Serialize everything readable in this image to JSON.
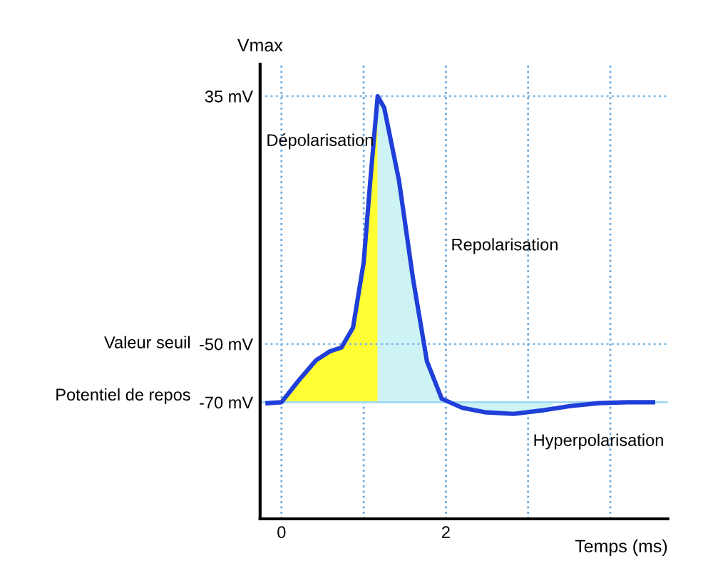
{
  "chart_data": {
    "type": "line",
    "ylabel": "Vmax",
    "xlabel": "Temps (ms)",
    "x": [
      -0.17,
      0,
      0.21,
      0.42,
      0.59,
      0.73,
      0.87,
      1.0,
      1.08,
      1.17,
      1.25,
      1.43,
      1.6,
      1.77,
      1.95,
      2.2,
      2.47,
      2.82,
      3.17,
      3.51,
      3.86,
      4.21,
      4.52
    ],
    "series": [
      {
        "type": "area",
        "color": "#ffff33",
        "x": [
          0,
          0.21,
          0.42,
          0.59,
          0.73,
          0.87,
          1.0,
          1.08,
          1.17,
          1.17
        ],
        "values": [
          -70,
          -62.5,
          -55.6,
          -52.5,
          -51.2,
          -44.4,
          -22,
          5.9,
          35,
          -70
        ]
      },
      {
        "type": "area",
        "color": "#cdf3f5",
        "x": [
          1.17,
          1.17,
          1.25,
          1.43,
          1.6,
          1.77,
          1.95,
          2.2,
          2.47,
          2.82,
          3.17,
          3.3,
          3.3
        ],
        "values": [
          -70,
          35,
          31,
          6,
          -27.6,
          -56,
          -68.8,
          -71.9,
          -73.4,
          -74,
          -72.8,
          -72.2,
          -70
        ]
      },
      {
        "color": "#1f3fd8",
        "values": [
          -70.3,
          -70,
          -62.5,
          -55.6,
          -52.5,
          -51.2,
          -44.4,
          -22,
          5.9,
          35,
          31,
          6,
          -27.6,
          -56,
          -68.8,
          -71.9,
          -73.4,
          -74,
          -72.8,
          -71.3,
          -70.3,
          -70,
          -70
        ]
      }
    ],
    "xlim": [
      -0.26,
      4.7
    ],
    "ylim": [
      -110,
      46
    ],
    "xticks": [
      0,
      {
        "value": 1,
        "label": null
      },
      2,
      {
        "value": 3,
        "label": null
      },
      {
        "value": 4,
        "label": null
      }
    ],
    "yticks": [
      {
        "value": -70,
        "label": "-70 mV"
      },
      {
        "value": -50,
        "label": "-50 mV"
      },
      {
        "value": 35,
        "label": "35 mV"
      }
    ],
    "grid": "x",
    "marker": "none",
    "line_style": "solid",
    "ref_lines": [
      {
        "axis": "y",
        "value": 35,
        "color": "#7ab8e6",
        "line_style": "dotted"
      },
      {
        "axis": "y",
        "value": -50,
        "color": "#7ab8e6",
        "line_style": "dotted"
      },
      {
        "axis": "y",
        "value": -70,
        "color": "#9fd8f0",
        "line_style": "solid"
      }
    ],
    "annotations": [
      "Dépolarisation",
      "Repolarisation",
      "Hyperpolarisation",
      "Valeur seuil",
      "Potentiel de repos"
    ]
  }
}
